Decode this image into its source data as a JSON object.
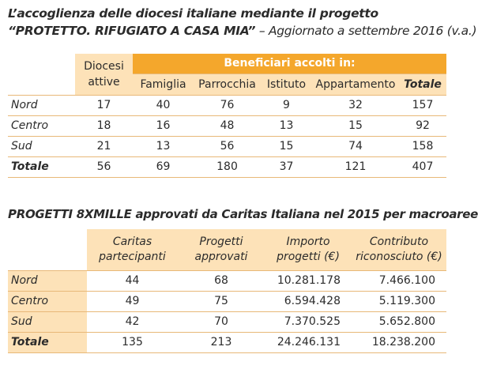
{
  "title1": {
    "line1": "L’accoglienza delle diocesi italiane mediante il progetto",
    "line2_bold": "“PROTETTO. RIFUGIATO A CASA MIA”",
    "line2_rest": "– Aggiornato a settembre 2016 (v.a.)"
  },
  "table1": {
    "col_header": "Diocesi attive",
    "group_header": "Beneficiari accolti in:",
    "subheaders": [
      "Famiglia",
      "Parrocchia",
      "Istituto",
      "Appartamento",
      "Totale"
    ],
    "rows": [
      [
        "Nord",
        "17",
        "40",
        "76",
        "9",
        "32",
        "157"
      ],
      [
        "Centro",
        "18",
        "16",
        "48",
        "13",
        "15",
        "92"
      ],
      [
        "Sud",
        "21",
        "13",
        "56",
        "15",
        "74",
        "158"
      ],
      [
        "Totale",
        "56",
        "69",
        "180",
        "37",
        "121",
        "407"
      ]
    ]
  },
  "title2": "PROGETTI 8XMILLE approvati da Caritas Italiana nel 2015 per macroaree",
  "table2": {
    "headers": [
      "Caritas partecipanti",
      "Progetti approvati",
      "Importo progetti (€)",
      "Contributo riconosciuto (€)"
    ],
    "rows": [
      [
        "Nord",
        "44",
        "68",
        "10.281.178",
        "7.466.100"
      ],
      [
        "Centro",
        "49",
        "75",
        "6.594.428",
        "5.119.300"
      ],
      [
        "Sud",
        "42",
        "70",
        "7.370.525",
        "5.652.800"
      ],
      [
        "Totale",
        "135",
        "213",
        "24.246.131",
        "18.238.200"
      ]
    ]
  }
}
